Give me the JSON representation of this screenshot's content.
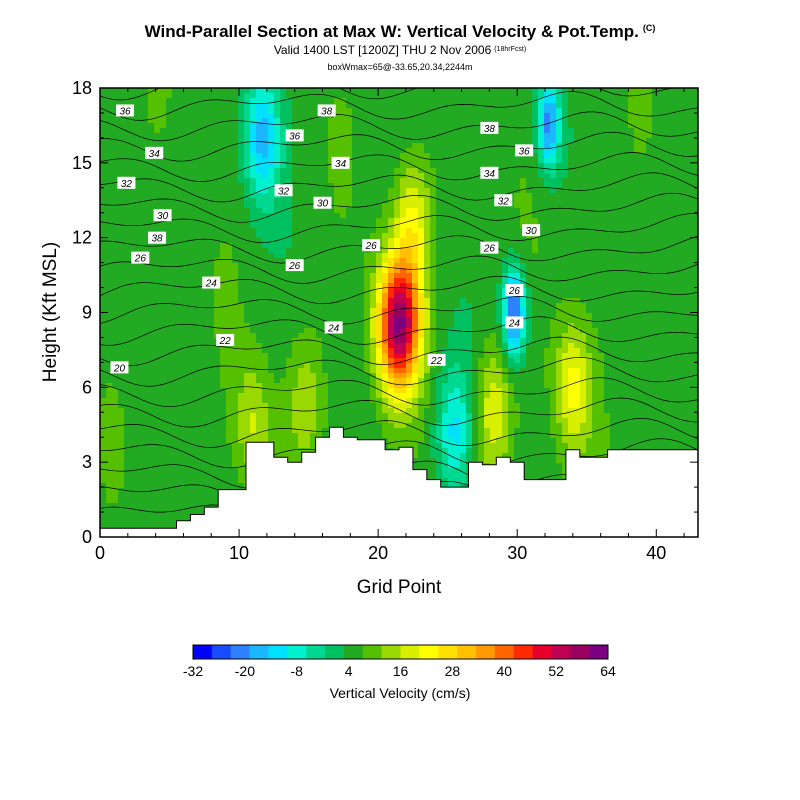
{
  "title": {
    "main": "Wind-Parallel Section at Max W: Vertical Velocity & Pot.Temp.",
    "copyright_mark": "(C)",
    "valid": "Valid 1400 LST [1200Z] THU 2 Nov 2006",
    "forecast": "(18hrFcst)",
    "box": "boxWmax=65@-33.65,20.34,2244m"
  },
  "chart_data": {
    "type": "heatmap",
    "xlabel": "Grid Point",
    "ylabel": "Height (Kft MSL)",
    "xlim": [
      0,
      43
    ],
    "ylim": [
      0,
      18
    ],
    "x_ticks": [
      0,
      10,
      20,
      30,
      40
    ],
    "y_ticks": [
      0,
      3,
      6,
      9,
      12,
      15,
      18
    ],
    "colorbar": {
      "title": "Vertical Velocity (cm/s)",
      "tick_labels": [
        "-32",
        "-20",
        "-8",
        "4",
        "16",
        "28",
        "40",
        "52",
        "64"
      ],
      "colors": [
        "#0000ff",
        "#1a4cff",
        "#2e82ff",
        "#1bb8ff",
        "#00e0ff",
        "#00f0d0",
        "#00d890",
        "#00c060",
        "#22aa22",
        "#55c000",
        "#99d800",
        "#d8f000",
        "#ffff00",
        "#ffe000",
        "#ffc000",
        "#ff9a00",
        "#ff6600",
        "#ff2a00",
        "#e8002a",
        "#c00050",
        "#9a0060",
        "#7a0080"
      ]
    },
    "vertical_velocity_features": [
      {
        "x": 21.5,
        "y": 8.5,
        "value": 64,
        "sign": "updraft core"
      },
      {
        "x": 29.8,
        "y": 9.0,
        "value": -32,
        "sign": "downdraft core"
      },
      {
        "x": 25.5,
        "y": 4.2,
        "value": -14,
        "sign": "downdraft"
      },
      {
        "x": 11.7,
        "y": 16.0,
        "value": -20,
        "sign": "downdraft"
      },
      {
        "x": 32.3,
        "y": 16.5,
        "value": -26,
        "sign": "downdraft"
      },
      {
        "x": 34.0,
        "y": 6.0,
        "value": 22,
        "sign": "updraft"
      },
      {
        "x": 28.3,
        "y": 5.0,
        "value": 20,
        "sign": "updraft"
      },
      {
        "x": 22.5,
        "y": 12.5,
        "value": 22,
        "sign": "updraft"
      },
      {
        "x": 14.8,
        "y": 5.5,
        "value": 14,
        "sign": "updraft"
      },
      {
        "x": 11.0,
        "y": 4.5,
        "value": 16,
        "sign": "updraft"
      }
    ],
    "terrain_profile": {
      "x": [
        0,
        1,
        2,
        3,
        4,
        5,
        6,
        7,
        8,
        9,
        10,
        11,
        12,
        13,
        14,
        15,
        16,
        17,
        18,
        19,
        20,
        21,
        22,
        23,
        24,
        25,
        26,
        27,
        28,
        29,
        30,
        31,
        32,
        33,
        34,
        35,
        36,
        37,
        38,
        39,
        40,
        41,
        42,
        43
      ],
      "height": [
        0.35,
        0.35,
        0.35,
        0.35,
        0.35,
        0.35,
        0.65,
        0.9,
        1.2,
        1.9,
        1.9,
        3.8,
        3.8,
        3.2,
        3.0,
        3.4,
        4.0,
        4.4,
        4.0,
        3.9,
        3.9,
        3.5,
        3.6,
        2.7,
        2.3,
        2.0,
        2.0,
        3.0,
        2.9,
        3.2,
        3.0,
        2.3,
        2.3,
        2.3,
        3.5,
        3.2,
        3.2,
        3.5,
        3.5,
        3.5,
        3.5,
        3.5,
        3.5,
        3.5
      ]
    },
    "potential_temperature_contour_labels": [
      {
        "label": "36",
        "x": 1.8,
        "y": 17.1
      },
      {
        "label": "38",
        "x": 16.3,
        "y": 17.1
      },
      {
        "label": "36",
        "x": 14.0,
        "y": 16.1
      },
      {
        "label": "38",
        "x": 28.0,
        "y": 16.4
      },
      {
        "label": "36",
        "x": 30.5,
        "y": 15.5
      },
      {
        "label": "34",
        "x": 3.9,
        "y": 15.4
      },
      {
        "label": "34",
        "x": 17.3,
        "y": 15.0
      },
      {
        "label": "34",
        "x": 28.0,
        "y": 14.6
      },
      {
        "label": "32",
        "x": 1.9,
        "y": 14.2
      },
      {
        "label": "32",
        "x": 13.2,
        "y": 13.9
      },
      {
        "label": "30",
        "x": 16.0,
        "y": 13.4
      },
      {
        "label": "32",
        "x": 29.0,
        "y": 13.5
      },
      {
        "label": "30",
        "x": 4.5,
        "y": 12.9
      },
      {
        "label": "38",
        "x": 4.1,
        "y": 12.0
      },
      {
        "label": "26",
        "x": 19.5,
        "y": 11.7
      },
      {
        "label": "30",
        "x": 31.0,
        "y": 12.3
      },
      {
        "label": "26",
        "x": 2.9,
        "y": 11.2
      },
      {
        "label": "26",
        "x": 14.0,
        "y": 10.9
      },
      {
        "label": "26",
        "x": 28.0,
        "y": 11.6
      },
      {
        "label": "24",
        "x": 8.0,
        "y": 10.2
      },
      {
        "label": "26",
        "x": 29.8,
        "y": 9.9
      },
      {
        "label": "24",
        "x": 16.8,
        "y": 8.4
      },
      {
        "label": "24",
        "x": 29.8,
        "y": 8.6
      },
      {
        "label": "22",
        "x": 9.0,
        "y": 7.9
      },
      {
        "label": "22",
        "x": 24.2,
        "y": 7.1
      },
      {
        "label": "20",
        "x": 1.4,
        "y": 6.8
      }
    ]
  }
}
